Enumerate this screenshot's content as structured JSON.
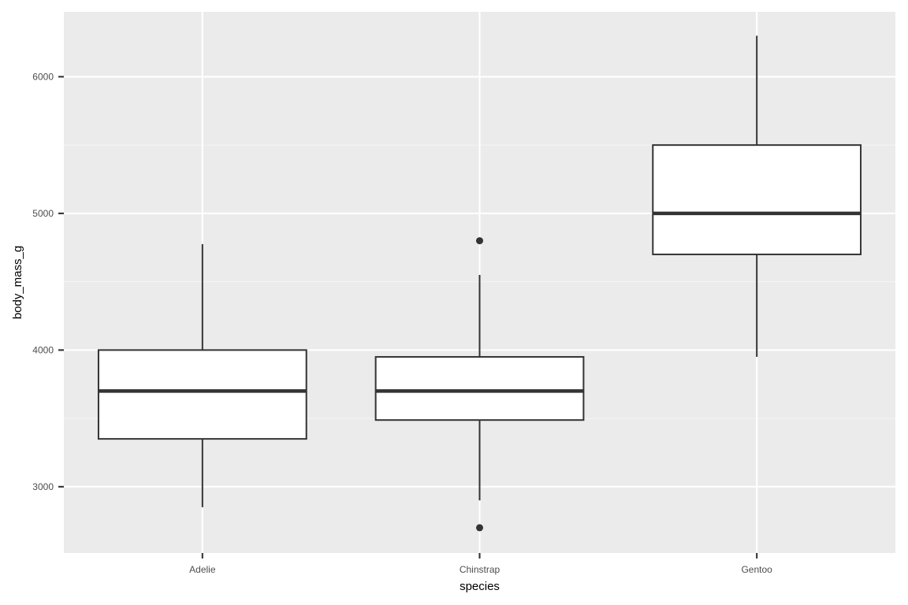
{
  "chart_data": {
    "type": "boxplot",
    "title": "",
    "xlabel": "species",
    "ylabel": "body_mass_g",
    "categories": [
      "Adelie",
      "Chinstrap",
      "Gentoo"
    ],
    "boxes": [
      {
        "category": "Adelie",
        "whisker_low": 2850,
        "q1": 3350,
        "median": 3700,
        "q3": 4000,
        "whisker_high": 4775,
        "outliers": []
      },
      {
        "category": "Chinstrap",
        "whisker_low": 2900,
        "q1": 3488,
        "median": 3700,
        "q3": 3950,
        "whisker_high": 4550,
        "outliers": [
          2700,
          4800
        ]
      },
      {
        "category": "Gentoo",
        "whisker_low": 3950,
        "q1": 4700,
        "median": 5000,
        "q3": 5500,
        "whisker_high": 6300,
        "outliers": []
      }
    ],
    "ylim": [
      2515,
      6475
    ],
    "yticks": [
      3000,
      4000,
      5000,
      6000
    ],
    "ytick_labels": [
      "3000",
      "4000",
      "5000",
      "6000"
    ],
    "grid": true,
    "legend": "none",
    "colors": {
      "panel_background": "#ebebeb",
      "grid_major": "#ffffff",
      "grid_minor": "#f5f5f5",
      "box_fill": "#ffffff",
      "box_stroke": "#333333",
      "tick_text": "#4d4d4d",
      "axis_title": "#000000"
    }
  }
}
